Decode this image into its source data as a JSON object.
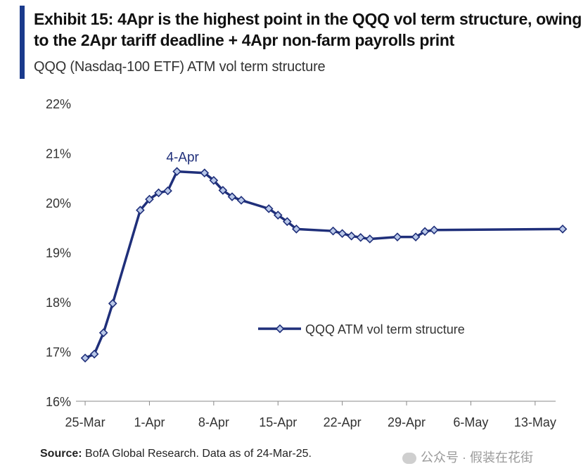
{
  "header": {
    "title": "Exhibit 15: 4Apr is the highest point in the QQQ vol term structure, owing to the 2Apr tariff deadline + 4Apr non-farm payrolls print",
    "subtitle": "QQQ (Nasdaq-100 ETF) ATM vol term structure"
  },
  "colors": {
    "series": "#1f2f7a",
    "marker_fill": "#b9c8e8",
    "accent": "#1a3a8c",
    "axis": "#888888"
  },
  "chart_data": {
    "type": "line",
    "title": "QQQ (Nasdaq-100 ETF) ATM vol term structure",
    "xlabel": "",
    "ylabel": "",
    "x_axis": "date (2025)",
    "x_tick_labels": [
      "25-Mar",
      "1-Apr",
      "8-Apr",
      "15-Apr",
      "22-Apr",
      "29-Apr",
      "6-May",
      "13-May"
    ],
    "xlim": [
      "2025-03-24",
      "2025-05-16"
    ],
    "y_tick_labels": [
      "16%",
      "17%",
      "18%",
      "19%",
      "20%",
      "21%",
      "22%"
    ],
    "ylim": [
      16,
      22
    ],
    "y_unit": "%",
    "grid": false,
    "legend_position": "right-middle",
    "series": [
      {
        "name": "QQQ ATM vol term structure",
        "points": [
          {
            "x": "2025-03-25",
            "y": 16.87
          },
          {
            "x": "2025-03-26",
            "y": 16.95
          },
          {
            "x": "2025-03-27",
            "y": 17.38
          },
          {
            "x": "2025-03-28",
            "y": 17.97
          },
          {
            "x": "2025-03-31",
            "y": 19.85
          },
          {
            "x": "2025-04-01",
            "y": 20.07
          },
          {
            "x": "2025-04-02",
            "y": 20.2
          },
          {
            "x": "2025-04-03",
            "y": 20.24
          },
          {
            "x": "2025-04-04",
            "y": 20.63
          },
          {
            "x": "2025-04-07",
            "y": 20.6
          },
          {
            "x": "2025-04-08",
            "y": 20.45
          },
          {
            "x": "2025-04-09",
            "y": 20.25
          },
          {
            "x": "2025-04-10",
            "y": 20.12
          },
          {
            "x": "2025-04-11",
            "y": 20.05
          },
          {
            "x": "2025-04-14",
            "y": 19.88
          },
          {
            "x": "2025-04-15",
            "y": 19.75
          },
          {
            "x": "2025-04-16",
            "y": 19.62
          },
          {
            "x": "2025-04-17",
            "y": 19.47
          },
          {
            "x": "2025-04-21",
            "y": 19.43
          },
          {
            "x": "2025-04-22",
            "y": 19.38
          },
          {
            "x": "2025-04-23",
            "y": 19.33
          },
          {
            "x": "2025-04-24",
            "y": 19.3
          },
          {
            "x": "2025-04-25",
            "y": 19.27
          },
          {
            "x": "2025-04-28",
            "y": 19.31
          },
          {
            "x": "2025-04-30",
            "y": 19.31
          },
          {
            "x": "2025-05-01",
            "y": 19.42
          },
          {
            "x": "2025-05-02",
            "y": 19.45
          },
          {
            "x": "2025-05-16",
            "y": 19.47
          }
        ]
      }
    ],
    "annotations": [
      {
        "text": "4-Apr",
        "x": "2025-04-04",
        "y": 20.63
      }
    ]
  },
  "footer": {
    "source_label": "Source:",
    "source_text": " BofA Global Research. Data as of 24-Mar-25.",
    "watermark": "公众号 · 假装在花街"
  }
}
